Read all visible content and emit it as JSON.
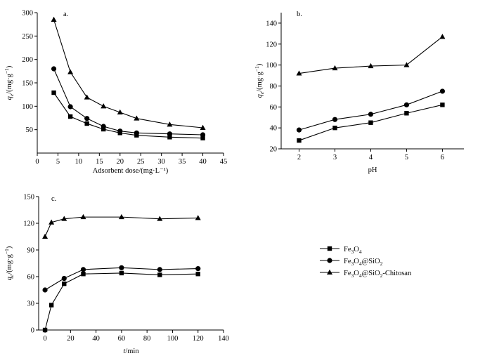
{
  "chart_data": [
    {
      "type": "line",
      "panel_label": "a.",
      "xlabel": "Adsorbent dose/(mg·L⁻¹)",
      "ylabel": {
        "sym": "q",
        "sub": "e",
        "rest": "/(mg·g",
        "sup": "−1",
        "close": ")"
      },
      "xlim": [
        0,
        45
      ],
      "ylim": [
        0,
        300
      ],
      "xticks": [
        0,
        5,
        10,
        15,
        20,
        25,
        30,
        35,
        40,
        45
      ],
      "yticks": [
        50,
        100,
        150,
        200,
        250,
        300
      ],
      "x": [
        4,
        8,
        12,
        16,
        20,
        24,
        32,
        40
      ],
      "series": [
        {
          "name": "Fe3O4",
          "marker": "square",
          "values": [
            129,
            78,
            63,
            51,
            43,
            38,
            34,
            32
          ]
        },
        {
          "name": "Fe3O4@SiO2",
          "marker": "circle",
          "values": [
            180,
            99,
            74,
            57,
            47,
            43,
            41,
            39
          ]
        },
        {
          "name": "Fe3O4@SiO2-Chitosan",
          "marker": "triangle",
          "values": [
            285,
            173,
            119,
            100,
            87,
            74,
            61,
            54
          ]
        }
      ]
    },
    {
      "type": "line",
      "panel_label": "b.",
      "xlabel": "pH",
      "ylabel": {
        "sym": "q",
        "sub": "e",
        "rest": "/(mg·g",
        "sup": "−1",
        "close": ")"
      },
      "xlim": [
        1.5,
        6.6
      ],
      "ylim": [
        20,
        150
      ],
      "xticks": [
        2,
        3,
        4,
        5,
        6
      ],
      "yticks": [
        20,
        40,
        60,
        80,
        100,
        120,
        140
      ],
      "x": [
        2,
        3,
        4,
        5,
        6
      ],
      "series": [
        {
          "name": "Fe3O4",
          "marker": "square",
          "values": [
            28,
            40,
            45,
            54,
            62
          ]
        },
        {
          "name": "Fe3O4@SiO2",
          "marker": "circle",
          "values": [
            38,
            48,
            53,
            62,
            75
          ]
        },
        {
          "name": "Fe3O4@SiO2-Chitosan",
          "marker": "triangle",
          "values": [
            92,
            97,
            99,
            100,
            127
          ]
        }
      ]
    },
    {
      "type": "line",
      "panel_label": "c.",
      "xlabel": {
        "sym": "t",
        "rest": "/min"
      },
      "ylabel": {
        "sym": "q",
        "sub": "e",
        "rest": "/(mg·g",
        "sup": "−1",
        "close": ")"
      },
      "xlim": [
        -5,
        140
      ],
      "ylim": [
        0,
        150
      ],
      "xticks": [
        0,
        20,
        40,
        60,
        80,
        100,
        120,
        140
      ],
      "yticks": [
        0,
        30,
        60,
        90,
        120,
        150
      ],
      "x": [
        0,
        5,
        15,
        30,
        60,
        90,
        120
      ],
      "series": [
        {
          "name": "Fe3O4",
          "marker": "square",
          "values": [
            0,
            28,
            52,
            63,
            64,
            62,
            63
          ]
        },
        {
          "name": "Fe3O4@SiO2",
          "marker": "circle",
          "values": [
            45,
            null,
            58,
            68,
            70,
            68,
            69
          ]
        },
        {
          "name": "Fe3O4@SiO2-Chitosan",
          "marker": "triangle",
          "values": [
            105,
            121,
            125,
            127,
            127,
            125,
            126
          ]
        }
      ]
    }
  ],
  "legend": [
    {
      "marker": "square",
      "parts": [
        {
          "t": "Fe"
        },
        {
          "t": "3",
          "sub": true
        },
        {
          "t": "O"
        },
        {
          "t": "4",
          "sub": true
        }
      ]
    },
    {
      "marker": "circle",
      "parts": [
        {
          "t": "Fe"
        },
        {
          "t": "3",
          "sub": true
        },
        {
          "t": "O"
        },
        {
          "t": "4",
          "sub": true
        },
        {
          "t": "@SiO"
        },
        {
          "t": "2",
          "sub": true
        }
      ]
    },
    {
      "marker": "triangle",
      "parts": [
        {
          "t": "Fe"
        },
        {
          "t": "3",
          "sub": true
        },
        {
          "t": "O"
        },
        {
          "t": "4",
          "sub": true
        },
        {
          "t": "@SiO"
        },
        {
          "t": "2",
          "sub": true
        },
        {
          "t": "-Chitosan"
        }
      ]
    }
  ]
}
